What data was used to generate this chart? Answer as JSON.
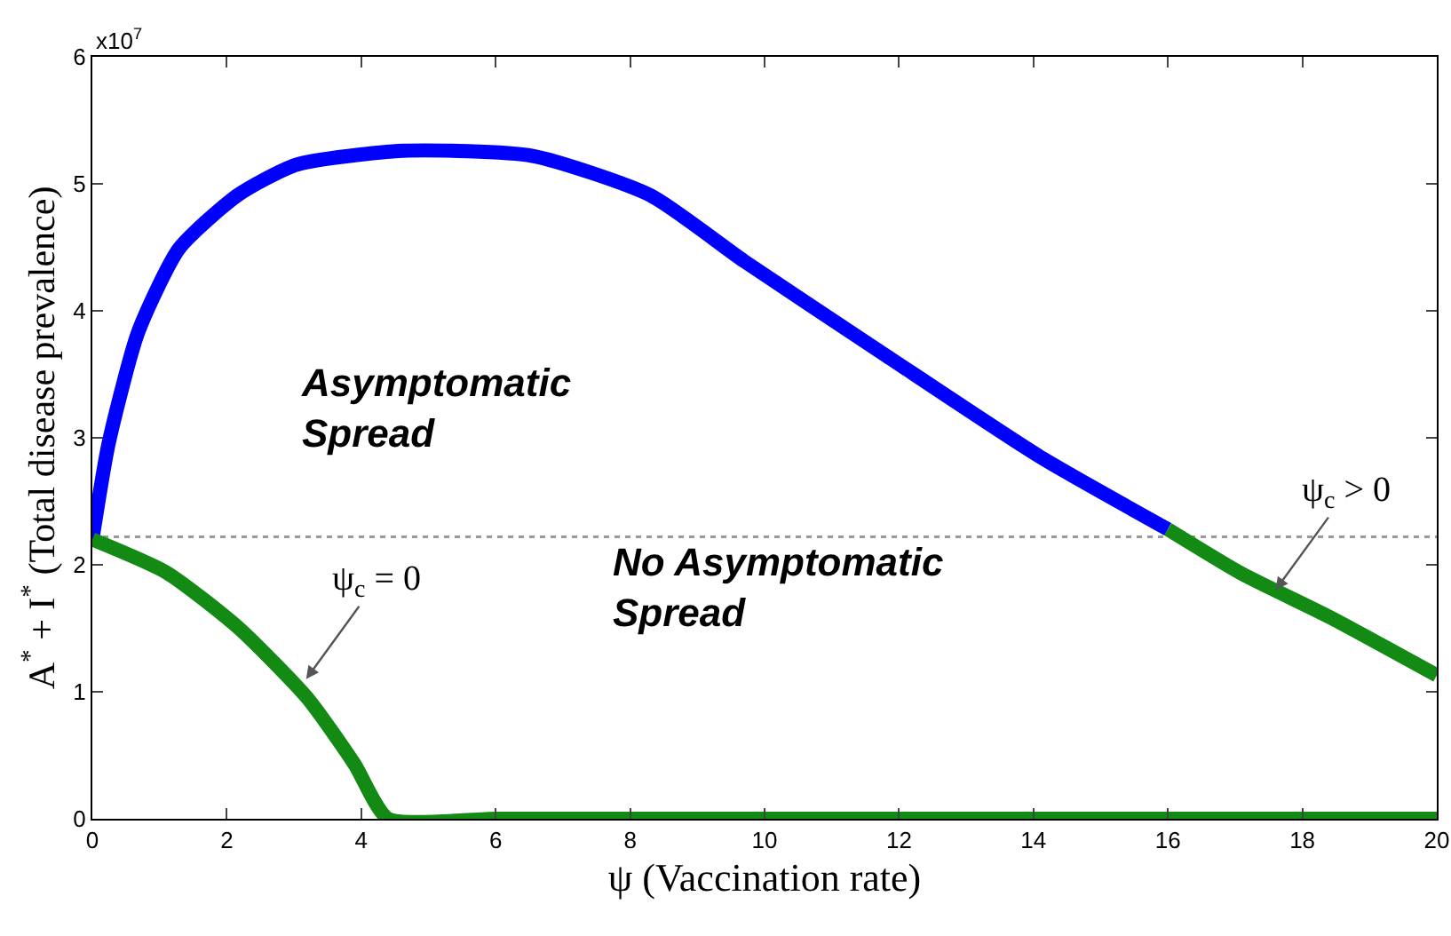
{
  "chart_data": {
    "type": "line",
    "xlabel": "ψ (Vaccination rate)",
    "ylabel": "A$^{*}$ + I$^{*}$ (Total disease prevalence)",
    "xlim": [
      0,
      20
    ],
    "xticks": [
      0,
      2,
      4,
      6,
      8,
      10,
      12,
      14,
      16,
      18,
      20
    ],
    "ylim": [
      0,
      6
    ],
    "yticks": [
      0,
      1,
      2,
      3,
      4,
      5,
      6
    ],
    "grid": false,
    "series": [
      {
        "color": "#0000ff",
        "x": [
          0,
          0.24,
          0.68,
          1.29,
          2.16,
          3.03,
          4.63,
          6.55,
          8.3,
          9.7,
          11.8,
          14.1,
          16
        ],
        "values": [
          2.2,
          2.95,
          3.83,
          4.49,
          4.91,
          5.15,
          5.26,
          5.22,
          4.91,
          4.39,
          3.65,
          2.85,
          2.28
        ]
      },
      {
        "color": "#138a13",
        "x": [
          0,
          1.1,
          2.16,
          3.2,
          3.9,
          4.4,
          6,
          8,
          10,
          12,
          14,
          16,
          18,
          20
        ],
        "values": [
          2.2,
          1.94,
          1.51,
          0.95,
          0.43,
          0,
          0,
          0,
          0,
          0,
          0,
          0,
          0,
          0
        ]
      },
      {
        "color": "#138a13",
        "x": [
          16,
          17.1,
          18.4,
          20
        ],
        "values": [
          2.28,
          1.93,
          1.59,
          1.13
        ]
      }
    ],
    "ref_lines": [
      {
        "axis": "y",
        "value": 2.22,
        "color": "#999999",
        "line_style": "dotted"
      }
    ],
    "annotations": [
      "Asymptomatic\nSpread",
      "No Asymptomatic\nSpread",
      {
        "text": "ψ$_{c}$ = 0",
        "x": 3.18,
        "y": 1.1
      },
      {
        "text": "ψ$_{c}$ > 0",
        "x": 17.6,
        "y": 1.8
      },
      "x10$^{7}$"
    ]
  }
}
